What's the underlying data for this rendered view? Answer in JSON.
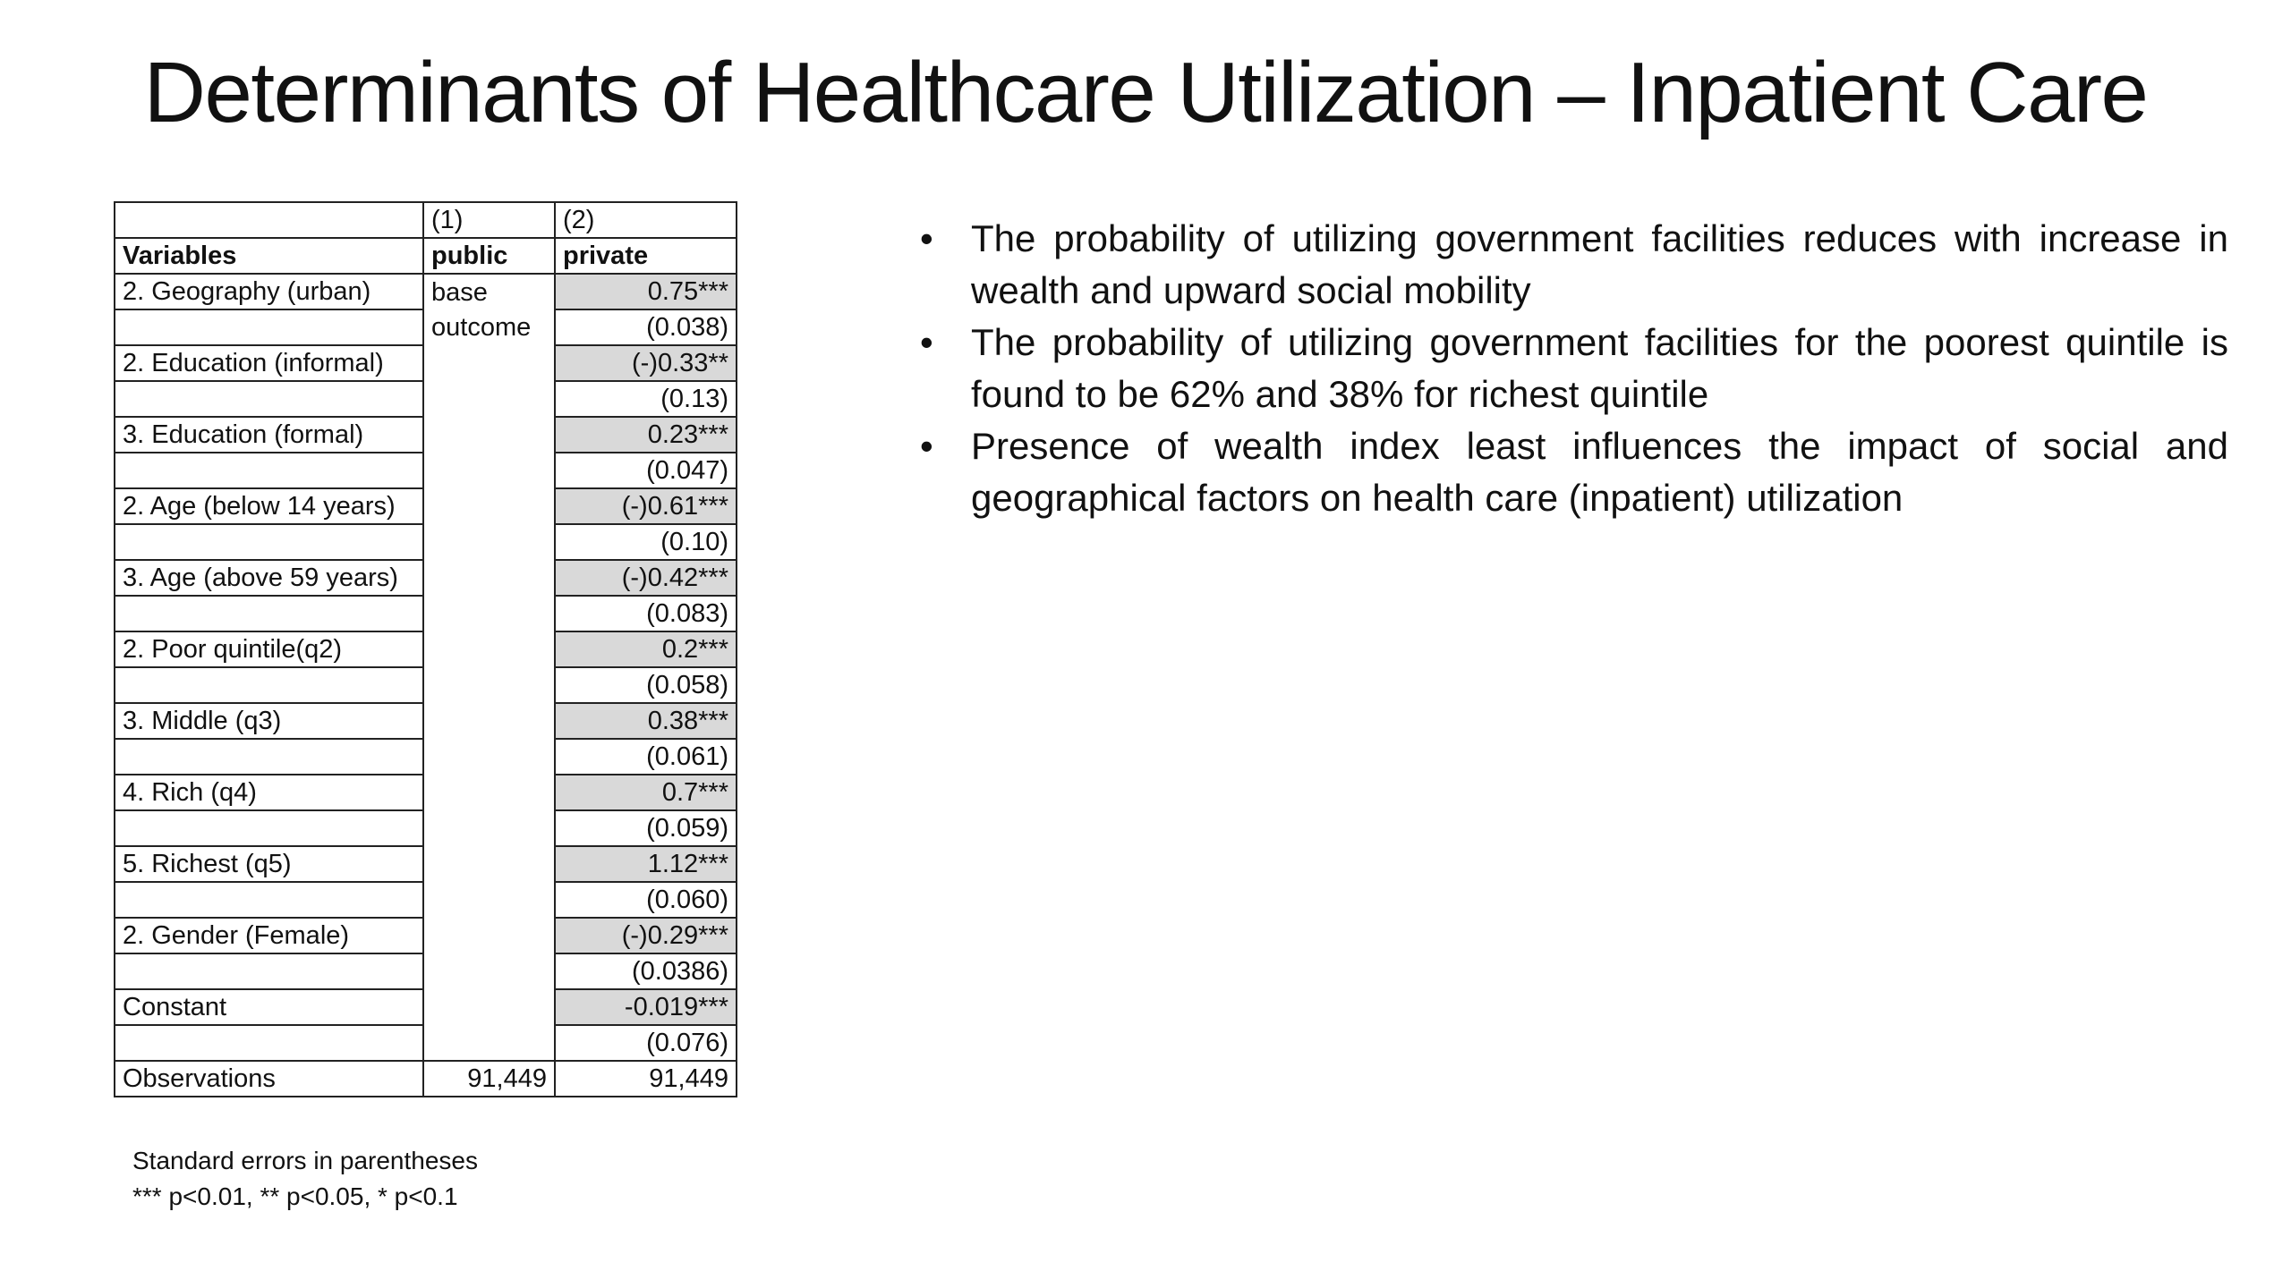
{
  "title": "Determinants of Healthcare Utilization – Inpatient Care",
  "table": {
    "col_numbers": [
      "(1)",
      "(2)"
    ],
    "col_header": "Variables",
    "col1_label": "public",
    "col2_label": "private",
    "base_outcome": [
      "base",
      "outcome"
    ],
    "rows": [
      {
        "variable": "2. Geography (urban)",
        "coef": "0.75***",
        "se": "(0.038)"
      },
      {
        "variable": "2. Education (informal)",
        "coef": "(-)0.33**",
        "se": "(0.13)"
      },
      {
        "variable": "3. Education (formal)",
        "coef": "0.23***",
        "se": "(0.047)"
      },
      {
        "variable": "2. Age (below 14 years)",
        "coef": "(-)0.61***",
        "se": "(0.10)"
      },
      {
        "variable": "3. Age (above 59 years)",
        "coef": "(-)0.42***",
        "se": "(0.083)"
      },
      {
        "variable": "2. Poor quintile(q2)",
        "coef": "0.2***",
        "se": "(0.058)"
      },
      {
        "variable": "3. Middle (q3)",
        "coef": "0.38***",
        "se": "(0.061)"
      },
      {
        "variable": "4. Rich (q4)",
        "coef": "0.7***",
        "se": "(0.059)"
      },
      {
        "variable": "5. Richest (q5)",
        "coef": "1.12***",
        "se": "(0.060)"
      },
      {
        "variable": "2. Gender (Female)",
        "coef": "(-)0.29***",
        "se": "(0.0386)"
      },
      {
        "variable": "Constant",
        "coef": "-0.019***",
        "se": "(0.076)"
      }
    ],
    "observations": {
      "label": "Observations",
      "col1": "91,449",
      "col2": "91,449"
    }
  },
  "notes": [
    "Standard errors in parentheses",
    "*** p<0.01, ** p<0.05, * p<0.1"
  ],
  "bullets": [
    "The probability of utilizing government facilities reduces with increase in wealth and upward social mobility",
    "The probability of utilizing government facilities for the poorest quintile is found to be 62% and 38% for richest quintile",
    "Presence of wealth index least influences the impact of social and geographical factors on health care (inpatient) utilization"
  ],
  "bullet_symbol": "•",
  "colors": {
    "shaded_cell": "#d9d9d9",
    "text": "#111111",
    "border": "#222222"
  }
}
